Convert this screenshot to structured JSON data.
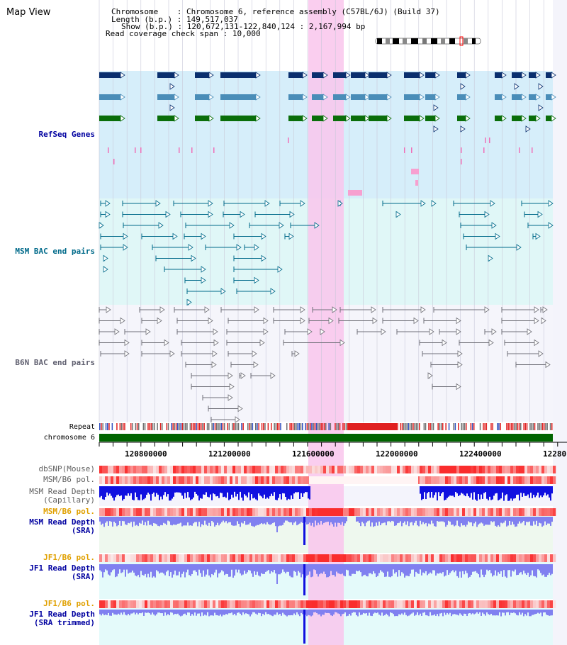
{
  "view_title": "Map View",
  "header": {
    "chromosome_label": "Chromosome",
    "chromosome_value": "Chromosome 6, reference assembly (C57BL/6J) (Build 37)",
    "length_label": "Length (b.p.)",
    "length_value": "149,517,037",
    "show_label": "Show (b.p.)",
    "show_value": "120,672,131-122,840,124 : 2,167,994 bp",
    "coverage_label": "Read coverage check span",
    "coverage_value": "10,000"
  },
  "tracks": {
    "refseq": "RefSeq Genes",
    "msm_bac": "MSM BAC end pairs",
    "b6n_bac": "B6N BAC end pairs",
    "repeat": "Repeat",
    "chromosome": "chromosome 6",
    "dbsnp": "dbSNP(Mouse)",
    "msm_b6_pol_1": "MSM/B6 pol.",
    "msm_read_depth_cap_1": "MSM Read Depth",
    "msm_read_depth_cap_2": "(Capillary)",
    "msm_b6_pol_2": "MSM/B6 pol.",
    "msm_read_depth_sra_1": "MSM Read Depth",
    "msm_read_depth_sra_2": "(SRA)",
    "jf1_b6_pol_1": "JF1/B6 pol.",
    "jf1_read_depth_sra_1": "JF1 Read Depth",
    "jf1_read_depth_sra_2": "(SRA)",
    "jf1_b6_pol_2": "JF1/B6 pol.",
    "jf1_read_depth_trim_1": "JF1 Read Depth",
    "jf1_read_depth_trim_2": "(SRA trimmed)"
  },
  "axis_ticks": [
    "120800000",
    "121200000",
    "121600000",
    "122000000",
    "122400000",
    "12280"
  ],
  "colors": {
    "highlight": "#f9c6ec",
    "refseq_bg": "#d6eefa",
    "msm_bac_bg": "#e0f7f7",
    "b6n_bac_bg": "#f5f5fb",
    "label_blue": "#0000a0",
    "label_teal": "#006a8a",
    "label_gray": "#606070",
    "label_orange": "#e0a000",
    "gene_dark": "#0a2f6e",
    "gene_steel": "#4a8db8",
    "gene_green": "#0a6e0a",
    "chrom_green": "#006400",
    "depth_blue": "#1010e0",
    "depth_light": "#8080f0"
  }
}
